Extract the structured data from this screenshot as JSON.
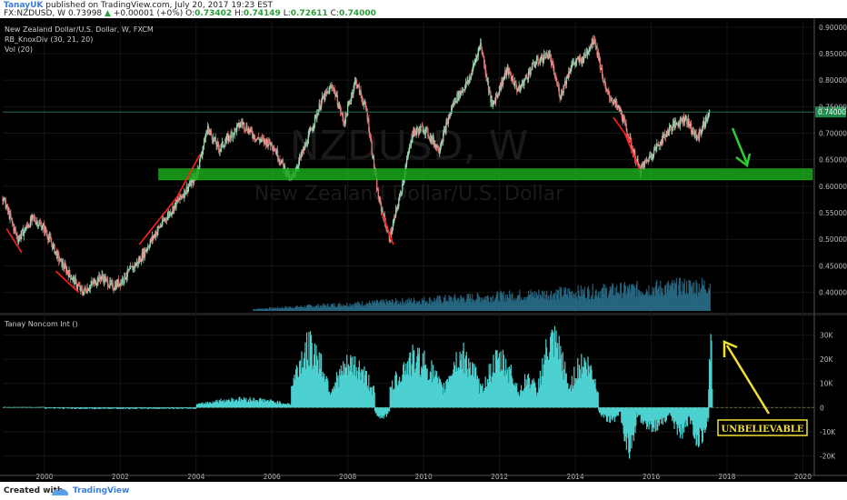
{
  "header": {
    "user": "TanayUK",
    "published": "published on TradingView.com, July 20, 2017 19:23 EST",
    "symbol": "FX:NZDUSD, W",
    "last": "0.73998",
    "change": "+0.00001 (+0%)",
    "open_label": "O:",
    "open": "0.73402",
    "high_label": "H:",
    "high": "0.74149",
    "low_label": "L:",
    "low": "0.72611",
    "close_label": "C:",
    "close": "0.74000"
  },
  "legend": {
    "line1": "New Zealand Dollar/U.S. Dollar, W, FXCM",
    "line2": "RB_KnoxDiv (30, 21, 20)",
    "line3": "Vol (20)",
    "indicator_title": "Tanay Noncom Int ()"
  },
  "watermark": {
    "symbol": "NZDUSD, W",
    "name": "New Zealand Dollar/U.S. Dollar"
  },
  "annotation": {
    "text": "UNBELIEVABLE"
  },
  "footer": {
    "created": "Created with",
    "brand": "TradingView"
  },
  "colors": {
    "bg": "#000000",
    "up": "#26a69a",
    "down": "#ef5350",
    "zone": "#1aa81a",
    "arrow_green": "#2ecc2e",
    "arrow_yellow": "#f0e030",
    "divergence": "#ff2020",
    "osc": "#4dd0d0"
  },
  "chart_data": [
    {
      "type": "candlestick",
      "title": "New Zealand Dollar/U.S. Dollar, W, FXCM",
      "x_ticks": [
        "2000",
        "2002",
        "2004",
        "2006",
        "2008",
        "2010",
        "2012",
        "2014",
        "2016",
        "2018",
        "2020"
      ],
      "x_range": [
        1998.9,
        2020.3
      ],
      "y_ticks": [
        "0.90000",
        "0.85000",
        "0.80000",
        "0.75000",
        "0.70000",
        "0.65000",
        "0.60000",
        "0.55000",
        "0.50000",
        "0.45000",
        "0.40000"
      ],
      "y_range": [
        0.365,
        0.91
      ],
      "last_price_label": "0.74000",
      "last_price": 0.74,
      "price_path": [
        [
          1998.9,
          0.58
        ],
        [
          1999.3,
          0.5
        ],
        [
          1999.7,
          0.54
        ],
        [
          2000.0,
          0.52
        ],
        [
          2000.4,
          0.46
        ],
        [
          2000.8,
          0.42
        ],
        [
          2001.0,
          0.4
        ],
        [
          2001.5,
          0.43
        ],
        [
          2001.8,
          0.41
        ],
        [
          2002.0,
          0.42
        ],
        [
          2002.5,
          0.46
        ],
        [
          2003.0,
          0.52
        ],
        [
          2003.5,
          0.57
        ],
        [
          2004.0,
          0.62
        ],
        [
          2004.3,
          0.71
        ],
        [
          2004.6,
          0.67
        ],
        [
          2005.2,
          0.72
        ],
        [
          2005.6,
          0.69
        ],
        [
          2006.0,
          0.68
        ],
        [
          2006.5,
          0.61
        ],
        [
          2006.9,
          0.68
        ],
        [
          2007.3,
          0.76
        ],
        [
          2007.6,
          0.79
        ],
        [
          2007.9,
          0.72
        ],
        [
          2008.2,
          0.8
        ],
        [
          2008.5,
          0.74
        ],
        [
          2008.8,
          0.58
        ],
        [
          2009.1,
          0.5
        ],
        [
          2009.4,
          0.59
        ],
        [
          2009.7,
          0.7
        ],
        [
          2010.0,
          0.71
        ],
        [
          2010.4,
          0.67
        ],
        [
          2010.8,
          0.76
        ],
        [
          2011.2,
          0.8
        ],
        [
          2011.5,
          0.87
        ],
        [
          2011.8,
          0.75
        ],
        [
          2012.2,
          0.82
        ],
        [
          2012.5,
          0.78
        ],
        [
          2012.9,
          0.83
        ],
        [
          2013.3,
          0.85
        ],
        [
          2013.6,
          0.77
        ],
        [
          2013.9,
          0.83
        ],
        [
          2014.2,
          0.84
        ],
        [
          2014.5,
          0.88
        ],
        [
          2014.8,
          0.78
        ],
        [
          2015.2,
          0.74
        ],
        [
          2015.5,
          0.67
        ],
        [
          2015.7,
          0.63
        ],
        [
          2016.0,
          0.66
        ],
        [
          2016.5,
          0.71
        ],
        [
          2016.9,
          0.73
        ],
        [
          2017.2,
          0.69
        ],
        [
          2017.55,
          0.74
        ]
      ],
      "zone": {
        "low": 0.612,
        "high": 0.633,
        "x_from": 2004.5,
        "x_to": 2020.3
      },
      "horizontal_line": 0.74,
      "divergence_lines": [
        [
          [
            1999.0,
            0.52
          ],
          [
            1999.4,
            0.475
          ]
        ],
        [
          [
            2000.3,
            0.44
          ],
          [
            2000.9,
            0.4
          ]
        ],
        [
          [
            2002.5,
            0.49
          ],
          [
            2003.5,
            0.58
          ]
        ],
        [
          [
            2003.5,
            0.58
          ],
          [
            2004.1,
            0.66
          ]
        ],
        [
          [
            2008.9,
            0.55
          ],
          [
            2009.2,
            0.49
          ]
        ],
        [
          [
            2015.0,
            0.73
          ],
          [
            2015.5,
            0.68
          ]
        ],
        [
          [
            2015.3,
            0.7
          ],
          [
            2015.7,
            0.63
          ]
        ]
      ],
      "volume_max": 1.0,
      "volume_start": 2005.5
    },
    {
      "type": "bar",
      "title": "Tanay Noncom Int ()",
      "y_ticks": [
        "30K",
        "20K",
        "10K",
        "0",
        "-10K",
        "-20K"
      ],
      "y_range": [
        -27000,
        37000
      ],
      "segments": [
        [
          1998.9,
          2000.0,
          200
        ],
        [
          2000.0,
          2004.0,
          -500
        ],
        [
          2004.0,
          2006.5,
          4000
        ],
        [
          2006.5,
          2007.5,
          28000
        ],
        [
          2007.5,
          2008.7,
          20000
        ],
        [
          2008.7,
          2009.1,
          -5000
        ],
        [
          2009.1,
          2010.5,
          23000
        ],
        [
          2010.5,
          2011.5,
          24000
        ],
        [
          2011.5,
          2012.5,
          22000
        ],
        [
          2012.5,
          2013.0,
          14000
        ],
        [
          2013.0,
          2013.8,
          30000
        ],
        [
          2013.8,
          2014.6,
          21000
        ],
        [
          2014.6,
          2015.2,
          -6000
        ],
        [
          2015.2,
          2015.6,
          -19000
        ],
        [
          2015.6,
          2016.5,
          -9000
        ],
        [
          2016.5,
          2017.0,
          -12000
        ],
        [
          2017.0,
          2017.5,
          -15000
        ],
        [
          2017.5,
          2017.6,
          32000
        ]
      ]
    }
  ]
}
